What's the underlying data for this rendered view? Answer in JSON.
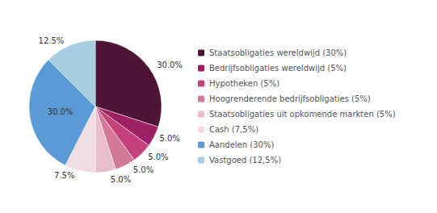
{
  "chart_data": {
    "type": "pie",
    "categories": [
      "Staatsobligaties wereldwijd (30%)",
      "Bedrijfsobligaties wereldwijd (5%)",
      "Hypotheken (5%)",
      "Hoogrenderende bedrijfsobligaties (5%)",
      "Staatsobligaties uit opkomende markten (5%)",
      "Cash (7,5%)",
      "Aandelen (30%)",
      "Vastgoed (12,5%)"
    ],
    "values": [
      30,
      5,
      5,
      5,
      5,
      7.5,
      30,
      12.5
    ],
    "value_labels": [
      "30.0%",
      "5.0%",
      "5.0%",
      "5.0%",
      "5.0%",
      "7.5%",
      "30.0%",
      "12.5%"
    ],
    "colors": [
      "#4e1434",
      "#9e2064",
      "#c4427a",
      "#d4789a",
      "#e8bece",
      "#f0dde4",
      "#5b9bd5",
      "#a8cce0"
    ],
    "data_labels": true,
    "legend": "right"
  }
}
